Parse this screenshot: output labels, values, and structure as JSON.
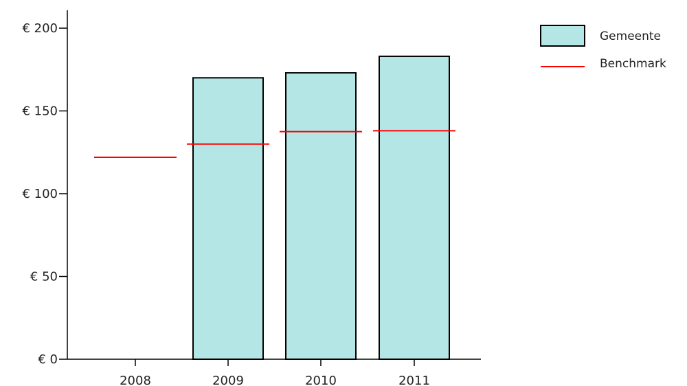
{
  "chart_data": {
    "type": "bar",
    "categories": [
      "2008",
      "2009",
      "2010",
      "2011"
    ],
    "series": [
      {
        "name": "Gemeente",
        "type": "bar",
        "values": [
          null,
          170,
          173,
          183
        ]
      },
      {
        "name": "Benchmark",
        "type": "line-segment",
        "values": [
          122,
          130,
          137.5,
          138
        ]
      }
    ],
    "ylim": [
      0,
      210
    ],
    "yticks": [
      0,
      50,
      100,
      150,
      200
    ],
    "ytick_labels": [
      "€ 0",
      "€ 50",
      "€ 100",
      "€ 150",
      "€ 200"
    ],
    "title": "",
    "xlabel": "",
    "ylabel": "",
    "legend_position": "top-right",
    "grid": false,
    "colors": {
      "bar_fill": "#b5e6e6",
      "bar_stroke": "#000000",
      "benchmark": "#ff0000"
    }
  },
  "legend": {
    "items": [
      {
        "label": "Gemeente"
      },
      {
        "label": "Benchmark"
      }
    ]
  }
}
